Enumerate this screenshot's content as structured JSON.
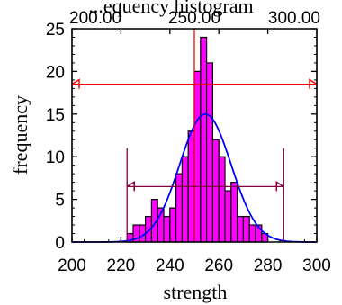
{
  "chart_data": {
    "type": "bar",
    "title": "...equency histogram",
    "xlabel": "strength",
    "ylabel": "frequency",
    "xlim": [
      200,
      300
    ],
    "ylim": [
      0,
      25
    ],
    "xticks": [
      "200",
      "220",
      "240",
      "260",
      "280",
      "300"
    ],
    "yticks": [
      "0",
      "5",
      "10",
      "15",
      "20",
      "25"
    ],
    "top_ticks": [
      "200.00",
      "250.00",
      "300.00"
    ],
    "bins": [
      {
        "start": 222.5,
        "end": 225,
        "count": 1
      },
      {
        "start": 225,
        "end": 227.5,
        "count": 2
      },
      {
        "start": 227.5,
        "end": 230,
        "count": 2
      },
      {
        "start": 230,
        "end": 232.5,
        "count": 3
      },
      {
        "start": 232.5,
        "end": 235,
        "count": 5
      },
      {
        "start": 235,
        "end": 237.5,
        "count": 4
      },
      {
        "start": 237.5,
        "end": 240,
        "count": 3
      },
      {
        "start": 240,
        "end": 242.5,
        "count": 4
      },
      {
        "start": 242.5,
        "end": 245,
        "count": 8
      },
      {
        "start": 245,
        "end": 247.5,
        "count": 10
      },
      {
        "start": 247.5,
        "end": 250,
        "count": 13
      },
      {
        "start": 250,
        "end": 252.5,
        "count": 20
      },
      {
        "start": 252.5,
        "end": 255,
        "count": 24
      },
      {
        "start": 255,
        "end": 257.5,
        "count": 21
      },
      {
        "start": 257.5,
        "end": 260,
        "count": 12
      },
      {
        "start": 260,
        "end": 262.5,
        "count": 10
      },
      {
        "start": 262.5,
        "end": 265,
        "count": 6
      },
      {
        "start": 265,
        "end": 267.5,
        "count": 7
      },
      {
        "start": 267.5,
        "end": 270,
        "count": 3
      },
      {
        "start": 270,
        "end": 272.5,
        "count": 3
      },
      {
        "start": 272.5,
        "end": 275,
        "count": 2
      },
      {
        "start": 275,
        "end": 277.5,
        "count": 2
      },
      {
        "start": 277.5,
        "end": 280,
        "count": 1
      }
    ],
    "normal_curve": {
      "mean": 254.5,
      "peak": 15,
      "sd": 10.5
    },
    "spec_limits": {
      "lower": 200,
      "upper": 300,
      "target": 250,
      "arrow_y": 18.5
    },
    "process_limits": {
      "lower": 222.5,
      "upper": 286.5,
      "arrow_y": 6.5,
      "top_y": 11
    },
    "colors": {
      "bars": "#ff00ff",
      "bar_edge": "#000000",
      "curve": "#0000ff",
      "spec_lines": "#ff0000",
      "process_lines": "#800040"
    }
  }
}
